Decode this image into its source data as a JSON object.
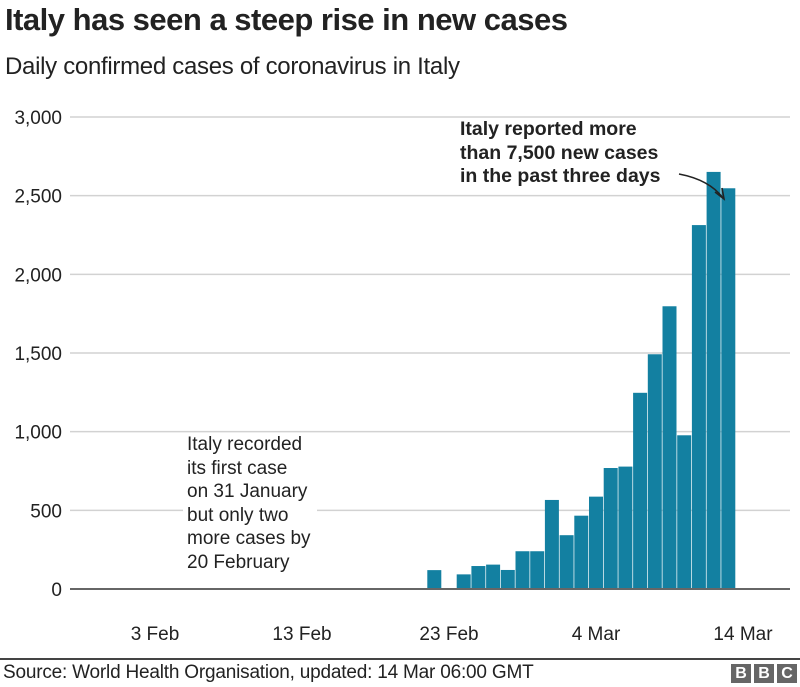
{
  "header": {
    "title": "Italy has seen a steep rise in new cases",
    "subtitle": "Daily confirmed cases of coronavirus in Italy"
  },
  "chart_data": {
    "type": "bar",
    "title": "Italy has seen a steep rise in new cases",
    "subtitle": "Daily confirmed cases of coronavirus in Italy",
    "xlabel": "",
    "ylabel": "",
    "ylim": [
      0,
      3000
    ],
    "yticks": [
      0,
      500,
      1000,
      1500,
      2000,
      2500,
      3000
    ],
    "ytick_labels": [
      "0",
      "500",
      "1,000",
      "1,500",
      "2,000",
      "2,500",
      "3,000"
    ],
    "xtick_labels": [
      "3 Feb",
      "13 Feb",
      "23 Feb",
      "4 Mar",
      "14 Mar"
    ],
    "xtick_days": [
      3,
      13,
      23,
      33,
      43
    ],
    "grid": true,
    "bar_color": "#1380A1",
    "categories": [
      "21 Feb",
      "22 Feb",
      "23 Feb",
      "24 Feb",
      "25 Feb",
      "26 Feb",
      "27 Feb",
      "28 Feb",
      "29 Feb",
      "1 Mar",
      "2 Mar",
      "3 Mar",
      "4 Mar",
      "5 Mar",
      "6 Mar",
      "7 Mar",
      "8 Mar",
      "9 Mar",
      "10 Mar",
      "11 Mar",
      "12 Mar",
      "13 Mar",
      "14 Mar"
    ],
    "category_days": [
      21,
      22,
      23,
      24,
      25,
      26,
      27,
      28,
      29,
      30,
      31,
      32,
      33,
      34,
      35,
      36,
      37,
      38,
      39,
      40,
      41,
      42,
      43
    ],
    "values": [
      3,
      120,
      0,
      93,
      146,
      155,
      121,
      240,
      240,
      566,
      342,
      466,
      587,
      769,
      778,
      1247,
      1492,
      1797,
      977,
      2313,
      2651,
      2547,
      0
    ],
    "annotations": [
      {
        "text": "Italy recorded\nits first case\non 31 January\nbut only two\nmore cases by\n20 February",
        "position": "bottom-left"
      },
      {
        "text": "Italy reported more\nthan 7,500 new cases\nin the past three days",
        "position": "top-right",
        "bold": true
      }
    ]
  },
  "footer": {
    "source": "Source: World Health Organisation, updated: 14 Mar 06:00 GMT",
    "logo_letters": [
      "B",
      "B",
      "C"
    ]
  }
}
